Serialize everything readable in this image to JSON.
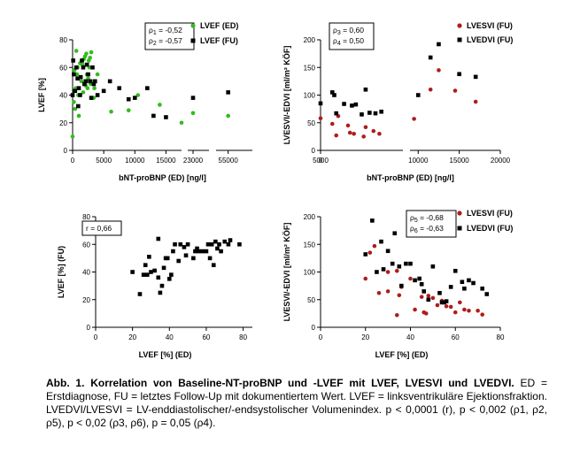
{
  "colors": {
    "ed": "#33bb1f",
    "fu": "#000000",
    "vsi": "#b01c1c",
    "vdi": "#000000"
  },
  "chart_data": [
    {
      "type": "scatter",
      "xlabel": "bNT-proBNP (ED) [ng/l]",
      "ylabel": "LVEF [%]",
      "xlim": [
        0,
        56000
      ],
      "ylim": [
        0,
        80
      ],
      "x_axis_breaks": [
        [
          17500,
          22500
        ],
        [
          24500,
          54500
        ]
      ],
      "x_ticks": [
        "0",
        "5000",
        "10000",
        "15000",
        "23000",
        "55000"
      ],
      "y_ticks": [
        "0",
        "20",
        "40",
        "60",
        "80"
      ],
      "legend": [
        "LVEF (ED)",
        "LVEF (FU)"
      ],
      "annotation": [
        "ρ1 = -0,52",
        "ρ2 = -0,57"
      ],
      "series": [
        {
          "name": "LVEF (ED)",
          "points": [
            [
              200,
              35
            ],
            [
              300,
              58
            ],
            [
              400,
              30
            ],
            [
              500,
              45
            ],
            [
              600,
              72
            ],
            [
              700,
              55
            ],
            [
              800,
              60
            ],
            [
              900,
              40
            ],
            [
              1000,
              25
            ],
            [
              1200,
              63
            ],
            [
              1400,
              50
            ],
            [
              1600,
              62
            ],
            [
              1700,
              42
            ],
            [
              1800,
              66
            ],
            [
              2000,
              68
            ],
            [
              2100,
              47
            ],
            [
              2200,
              70
            ],
            [
              2300,
              55
            ],
            [
              2400,
              45
            ],
            [
              2500,
              52
            ],
            [
              2600,
              65
            ],
            [
              2700,
              60
            ],
            [
              2800,
              67
            ],
            [
              2900,
              48
            ],
            [
              3000,
              71
            ],
            [
              3200,
              50
            ],
            [
              3400,
              38
            ],
            [
              3500,
              45
            ],
            [
              4000,
              55
            ],
            [
              6200,
              28
            ],
            [
              9000,
              29
            ],
            [
              10500,
              40
            ],
            [
              12000,
              45
            ],
            [
              14000,
              33
            ],
            [
              17500,
              20
            ],
            [
              18000,
              10
            ],
            [
              23000,
              27
            ],
            [
              55000,
              25
            ]
          ]
        },
        {
          "name": "LVEF (FU)",
          "points": [
            [
              100,
              65
            ],
            [
              200,
              55
            ],
            [
              400,
              43
            ],
            [
              600,
              60
            ],
            [
              800,
              52
            ],
            [
              900,
              32
            ],
            [
              1000,
              45
            ],
            [
              1200,
              40
            ],
            [
              1300,
              53
            ],
            [
              1500,
              65
            ],
            [
              1700,
              60
            ],
            [
              1900,
              48
            ],
            [
              2100,
              50
            ],
            [
              2300,
              62
            ],
            [
              2500,
              55
            ],
            [
              2800,
              50
            ],
            [
              3000,
              38
            ],
            [
              3200,
              60
            ],
            [
              3400,
              48
            ],
            [
              3600,
              50
            ],
            [
              4000,
              40
            ],
            [
              5000,
              43
            ],
            [
              6000,
              50
            ],
            [
              7500,
              45
            ],
            [
              9000,
              37
            ],
            [
              10000,
              38
            ],
            [
              12000,
              45
            ],
            [
              13000,
              25
            ],
            [
              15000,
              24
            ],
            [
              18000,
              40
            ],
            [
              23000,
              38
            ],
            [
              55000,
              42
            ]
          ]
        }
      ]
    },
    {
      "type": "scatter",
      "xlabel": "bNT-proBNP (ED) [ng/l]",
      "ylabel": "LVESVI/-EDVI [ml/m² KÖF]",
      "xlim": [
        0,
        20000
      ],
      "ylim": [
        0,
        200
      ],
      "x_axis_breaks": [
        [
          4200,
          9000
        ]
      ],
      "x_ticks": [
        "0",
        "5000",
        "10000",
        "15000",
        "20000"
      ],
      "y_ticks": [
        "0",
        "50",
        "100",
        "150",
        "200"
      ],
      "legend": [
        "LVESVI (FU)",
        "LVEDVI (FU)"
      ],
      "annotation": [
        "ρ3 = 0,60",
        "ρ4 = 0,50"
      ],
      "series": [
        {
          "name": "LVESVI (FU)",
          "points": [
            [
              600,
              48
            ],
            [
              800,
              27
            ],
            [
              900,
              62
            ],
            [
              1400,
              45
            ],
            [
              1500,
              32
            ],
            [
              1700,
              30
            ],
            [
              2200,
              25
            ],
            [
              2300,
              42
            ],
            [
              2700,
              35
            ],
            [
              3000,
              30
            ],
            [
              6500,
              58
            ],
            [
              9500,
              57
            ],
            [
              11500,
              110
            ],
            [
              12500,
              145
            ],
            [
              14500,
              108
            ],
            [
              17000,
              88
            ]
          ]
        },
        {
          "name": "LVEDVI (FU)",
          "points": [
            [
              600,
              105
            ],
            [
              700,
              100
            ],
            [
              800,
              67
            ],
            [
              1200,
              84
            ],
            [
              1600,
              81
            ],
            [
              1800,
              83
            ],
            [
              2100,
              65
            ],
            [
              2300,
              110
            ],
            [
              2500,
              68
            ],
            [
              2800,
              67
            ],
            [
              3100,
              70
            ],
            [
              8500,
              85
            ],
            [
              10000,
              100
            ],
            [
              11500,
              168
            ],
            [
              12500,
              192
            ],
            [
              15000,
              138
            ],
            [
              17000,
              133
            ]
          ]
        }
      ]
    },
    {
      "type": "scatter",
      "xlabel": "LVEF [%] (ED)",
      "ylabel": "LVEF [%] (FU)",
      "xlim": [
        0,
        85
      ],
      "ylim": [
        0,
        80
      ],
      "x_ticks": [
        "0",
        "20",
        "40",
        "60",
        "80"
      ],
      "y_ticks": [
        "0",
        "20",
        "40",
        "60",
        "80"
      ],
      "legend": [],
      "annotation": [
        "r = 0,66"
      ],
      "series": [
        {
          "name": "",
          "points": [
            [
              20,
              40
            ],
            [
              24,
              24
            ],
            [
              26,
              38
            ],
            [
              27,
              45
            ],
            [
              28,
              38
            ],
            [
              29,
              51
            ],
            [
              30,
              40
            ],
            [
              32,
              41
            ],
            [
              34,
              36
            ],
            [
              34,
              64
            ],
            [
              35,
              25
            ],
            [
              36,
              30
            ],
            [
              37,
              43
            ],
            [
              38,
              50
            ],
            [
              39,
              50
            ],
            [
              40,
              35
            ],
            [
              41,
              38
            ],
            [
              42,
              55
            ],
            [
              43,
              60
            ],
            [
              45,
              48
            ],
            [
              46,
              60
            ],
            [
              48,
              58
            ],
            [
              49,
              52
            ],
            [
              50,
              60
            ],
            [
              53,
              50
            ],
            [
              54,
              55
            ],
            [
              55,
              57
            ],
            [
              56,
              55
            ],
            [
              58,
              55
            ],
            [
              60,
              55
            ],
            [
              61,
              60
            ],
            [
              62,
              50
            ],
            [
              63,
              60
            ],
            [
              64,
              45
            ],
            [
              65,
              62
            ],
            [
              66,
              57
            ],
            [
              67,
              60
            ],
            [
              68,
              55
            ],
            [
              70,
              62
            ],
            [
              72,
              60
            ],
            [
              73,
              63
            ],
            [
              78,
              60
            ]
          ]
        }
      ]
    },
    {
      "type": "scatter",
      "xlabel": "LVEF [%] (ED)",
      "ylabel": "LVESVI/-EDVI [ml/m² KÖF]",
      "xlim": [
        0,
        80
      ],
      "ylim": [
        0,
        200
      ],
      "x_ticks": [
        "0",
        "20",
        "40",
        "60",
        "80"
      ],
      "y_ticks": [
        "0",
        "50",
        "100",
        "150",
        "200"
      ],
      "legend": [
        "LVESVI (FU)",
        "LVEDVI (FU)"
      ],
      "annotation": [
        "ρ5 = -0,68",
        "ρ6 = -0,63"
      ],
      "series": [
        {
          "name": "LVESVI (FU)",
          "points": [
            [
              20,
              88
            ],
            [
              22,
              135
            ],
            [
              24,
              147
            ],
            [
              26,
              62
            ],
            [
              28,
              105
            ],
            [
              30,
              100
            ],
            [
              30,
              65
            ],
            [
              34,
              102
            ],
            [
              34,
              22
            ],
            [
              35,
              58
            ],
            [
              36,
              73
            ],
            [
              40,
              88
            ],
            [
              42,
              32
            ],
            [
              45,
              55
            ],
            [
              46,
              27
            ],
            [
              47,
              25
            ],
            [
              48,
              57
            ],
            [
              50,
              53
            ],
            [
              52,
              40
            ],
            [
              54,
              48
            ],
            [
              56,
              38
            ],
            [
              58,
              37
            ],
            [
              60,
              27
            ],
            [
              62,
              45
            ],
            [
              64,
              32
            ],
            [
              66,
              30
            ],
            [
              70,
              30
            ],
            [
              72,
              23
            ]
          ]
        },
        {
          "name": "LVEDVI (FU)",
          "points": [
            [
              20,
              132
            ],
            [
              23,
              193
            ],
            [
              25,
              100
            ],
            [
              27,
              155
            ],
            [
              28,
              105
            ],
            [
              30,
              138
            ],
            [
              32,
              115
            ],
            [
              33,
              170
            ],
            [
              35,
              110
            ],
            [
              36,
              75
            ],
            [
              38,
              115
            ],
            [
              40,
              115
            ],
            [
              42,
              85
            ],
            [
              44,
              88
            ],
            [
              45,
              78
            ],
            [
              46,
              65
            ],
            [
              48,
              50
            ],
            [
              50,
              110
            ],
            [
              53,
              62
            ],
            [
              54,
              45
            ],
            [
              55,
              45
            ],
            [
              56,
              47
            ],
            [
              58,
              73
            ],
            [
              60,
              102
            ],
            [
              63,
              82
            ],
            [
              64,
              70
            ],
            [
              66,
              85
            ],
            [
              68,
              80
            ],
            [
              72,
              70
            ],
            [
              74,
              60
            ]
          ]
        }
      ]
    }
  ],
  "caption": {
    "bold_text": "Abb. 1. Korrelation von Baseline-NT-proBNP und -LVEF mit LVEF, LVESVI und LVEDVI.",
    "normal_text": " ED = Erstdiagnose, FU = letztes Follow-Up mit dokumentiertem Wert. LVEF = linksventrikuläre Ejektionsfraktion. LVEDVI/LVESVI = LV-enddiastolischer/-endsystolischer Volumenindex. p < 0,0001 (r), p < 0,002 (ρ1, ρ2, ρ5), p < 0,02 (ρ3, ρ6), p = 0,05 (ρ4)."
  }
}
